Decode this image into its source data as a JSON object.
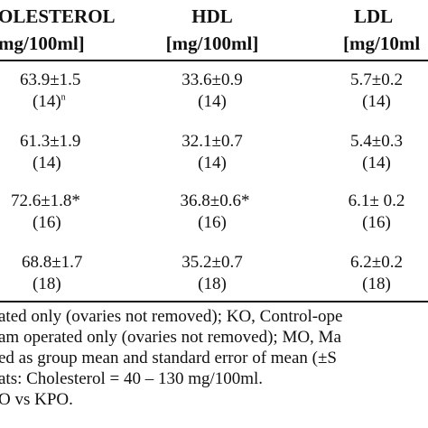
{
  "header": {
    "columns": [
      {
        "name": "OLESTEROL",
        "unit": "mg/100ml]"
      },
      {
        "name": "HDL",
        "unit": "[mg/100ml]"
      },
      {
        "name": "LDL",
        "unit": "[mg/10ml"
      }
    ]
  },
  "rows": [
    {
      "chol": {
        "value": "63.9±1.5",
        "n": "(14)",
        "sup": "n"
      },
      "hdl": {
        "value": "33.6±0.9",
        "n": "(14)"
      },
      "ldl": {
        "value": "5.7±0.2",
        "n": "(14)"
      }
    },
    {
      "chol": {
        "value": "61.3±1.9",
        "n": "(14)"
      },
      "hdl": {
        "value": "32.1±0.7",
        "n": "(14)"
      },
      "ldl": {
        "value": "5.4±0.3",
        "n": "(14)"
      }
    },
    {
      "chol": {
        "value": "72.6±1.8*",
        "n": "(16)"
      },
      "hdl": {
        "value": "36.8±0.6*",
        "n": "(16)"
      },
      "ldl": {
        "value": "6.1± 0.2",
        "n": "(16)"
      }
    },
    {
      "chol": {
        "value": "68.8±1.7",
        "n": "(18)"
      },
      "hdl": {
        "value": "35.2±0.7",
        "n": "(18)"
      },
      "ldl": {
        "value": "6.2±0.2",
        "n": "(18)"
      }
    }
  ],
  "footnotes": [
    "ated only (ovaries not removed); KO, Control-ope",
    "am operated only (ovaries not removed); MO, Ma",
    "ed as group mean and standard error of mean (±S",
    "ats: Cholesterol = 40 – 130 mg/100ml.",
    "O vs KPO."
  ]
}
